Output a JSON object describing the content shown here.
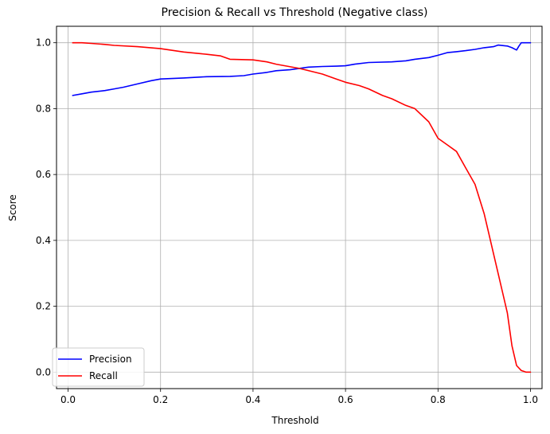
{
  "chart_data": {
    "type": "line",
    "title": "Precision & Recall vs Threshold (Negative class)",
    "xlabel": "Threshold",
    "ylabel": "Score",
    "xlim": [
      -0.025,
      1.025
    ],
    "ylim": [
      -0.05,
      1.05
    ],
    "xticks": [
      0.0,
      0.2,
      0.4,
      0.6,
      0.8,
      1.0
    ],
    "xtick_labels": [
      "0.0",
      "0.2",
      "0.4",
      "0.6",
      "0.8",
      "1.0"
    ],
    "yticks": [
      0.0,
      0.2,
      0.4,
      0.6,
      0.8,
      1.0
    ],
    "ytick_labels": [
      "0.0",
      "0.2",
      "0.4",
      "0.6",
      "0.8",
      "1.0"
    ],
    "grid": true,
    "legend_position": "lower-left",
    "series": [
      {
        "name": "Precision",
        "color": "#0000ff",
        "x": [
          0.01,
          0.03,
          0.05,
          0.08,
          0.1,
          0.12,
          0.15,
          0.18,
          0.2,
          0.25,
          0.3,
          0.35,
          0.38,
          0.4,
          0.43,
          0.45,
          0.48,
          0.5,
          0.52,
          0.55,
          0.58,
          0.6,
          0.62,
          0.65,
          0.7,
          0.73,
          0.75,
          0.78,
          0.8,
          0.82,
          0.84,
          0.86,
          0.88,
          0.9,
          0.92,
          0.93,
          0.95,
          0.96,
          0.97,
          0.975,
          0.98,
          0.985,
          0.99,
          1.0
        ],
        "y": [
          0.84,
          0.845,
          0.85,
          0.855,
          0.86,
          0.865,
          0.875,
          0.885,
          0.89,
          0.893,
          0.897,
          0.898,
          0.9,
          0.905,
          0.91,
          0.915,
          0.918,
          0.922,
          0.926,
          0.928,
          0.929,
          0.93,
          0.935,
          0.94,
          0.942,
          0.945,
          0.95,
          0.955,
          0.962,
          0.97,
          0.973,
          0.976,
          0.98,
          0.985,
          0.988,
          0.993,
          0.99,
          0.985,
          0.978,
          0.99,
          1.0,
          1.0,
          1.0,
          1.0
        ]
      },
      {
        "name": "Recall",
        "color": "#ff0000",
        "x": [
          0.01,
          0.03,
          0.05,
          0.08,
          0.1,
          0.15,
          0.2,
          0.25,
          0.3,
          0.33,
          0.35,
          0.4,
          0.43,
          0.45,
          0.5,
          0.53,
          0.55,
          0.58,
          0.6,
          0.63,
          0.65,
          0.68,
          0.7,
          0.73,
          0.75,
          0.78,
          0.8,
          0.82,
          0.84,
          0.86,
          0.88,
          0.9,
          0.91,
          0.92,
          0.93,
          0.94,
          0.95,
          0.96,
          0.97,
          0.98,
          0.99,
          1.0
        ],
        "y": [
          1.0,
          1.0,
          0.998,
          0.995,
          0.992,
          0.988,
          0.982,
          0.972,
          0.965,
          0.96,
          0.95,
          0.948,
          0.942,
          0.935,
          0.922,
          0.912,
          0.905,
          0.89,
          0.88,
          0.87,
          0.86,
          0.84,
          0.83,
          0.81,
          0.8,
          0.76,
          0.71,
          0.69,
          0.67,
          0.62,
          0.57,
          0.48,
          0.42,
          0.36,
          0.3,
          0.24,
          0.18,
          0.08,
          0.02,
          0.005,
          0.0,
          0.0
        ]
      }
    ]
  }
}
